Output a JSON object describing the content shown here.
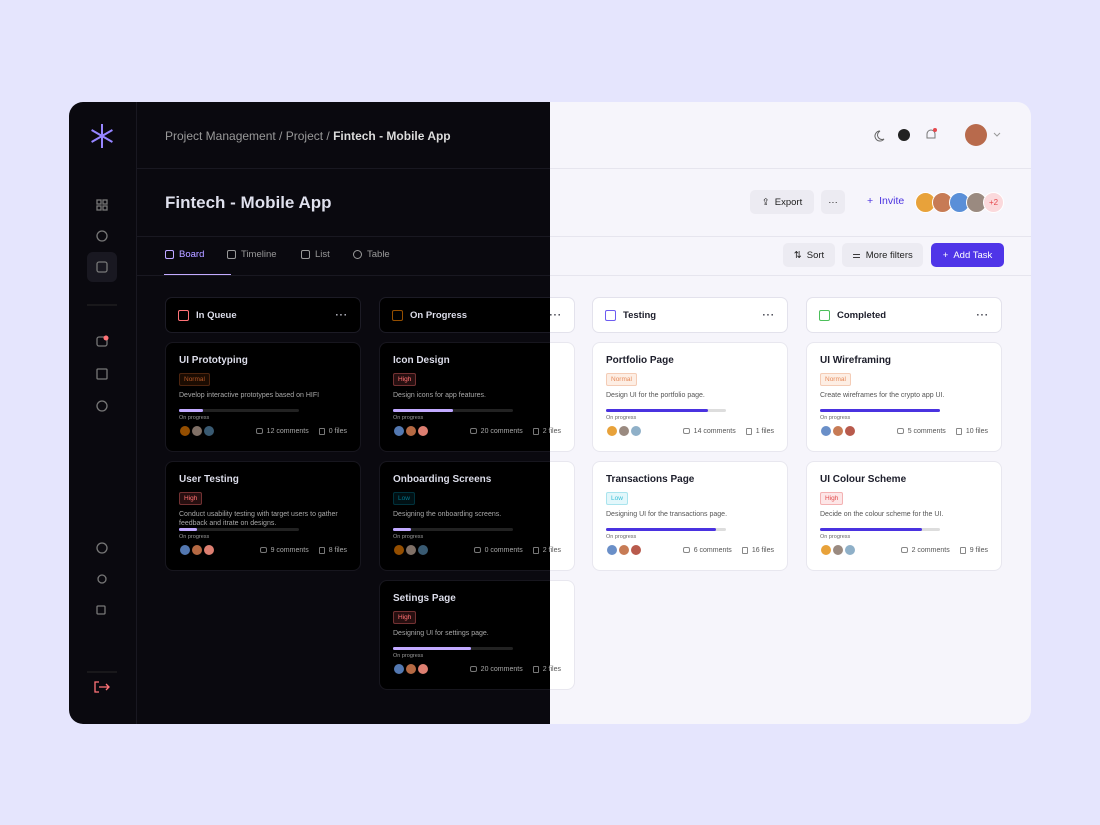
{
  "breadcrumb": {
    "path": "Project Management / Project /",
    "current": "Fintech - Mobile App"
  },
  "title": "Fintech - Mobile App",
  "actions": {
    "export": "Export",
    "invite": "Invite",
    "extra_members": "+2"
  },
  "tabs": [
    "Board",
    "Timeline",
    "List",
    "Table"
  ],
  "toolbar": {
    "sort": "Sort",
    "filters": "More filters",
    "add": "Add Task"
  },
  "columns": [
    {
      "name": "In Queue",
      "color": "#e5484d",
      "cards": [
        {
          "title": "UI Prototyping",
          "priority": "Normal",
          "description": "Develop interactive prototypes based on HIFI",
          "status": "On progress",
          "progress": 20,
          "comments": "12 comments",
          "files": "0 files"
        },
        {
          "title": "User Testing",
          "priority": "High",
          "description": "Conduct usability testing with target users to gather feedback and itrate on designs.",
          "status": "On progress",
          "progress": 15,
          "comments": "9 comments",
          "files": "8 files"
        }
      ]
    },
    {
      "name": "On Progress",
      "color": "#e8a23a",
      "cards": [
        {
          "title": "Icon Design",
          "priority": "High",
          "description": "Design icons for app features.",
          "status": "On progress",
          "progress": 50,
          "comments": "20 comments",
          "files": "2 files"
        },
        {
          "title": "Onboarding Screens",
          "priority": "Low",
          "description": "Designing the onboarding screens.",
          "status": "On progress",
          "progress": 15,
          "comments": "0 comments",
          "files": "2 files"
        },
        {
          "title": "Setings Page",
          "priority": "High",
          "description": "Designing UI for settings page.",
          "status": "On progress",
          "progress": 65,
          "comments": "20 comments",
          "files": "2 files"
        }
      ]
    },
    {
      "name": "Testing",
      "color": "#6d5cf0",
      "cards": [
        {
          "title": "Portfolio Page",
          "priority": "Normal",
          "description": "Design UI for the portfolio page.",
          "status": "On progress",
          "progress": 85,
          "comments": "14 comments",
          "files": "1 files"
        },
        {
          "title": "Transactions Page",
          "priority": "Low",
          "description": "Designing UI for the transactions page.",
          "status": "On progress",
          "progress": 92,
          "comments": "6 comments",
          "files": "16 files"
        }
      ]
    },
    {
      "name": "Completed",
      "color": "#4cbf5a",
      "cards": [
        {
          "title": "UI Wireframing",
          "priority": "Normal",
          "description": "Create wireframes for the crypto app UI.",
          "status": "On progress",
          "progress": 100,
          "comments": "5 comments",
          "files": "10 files"
        },
        {
          "title": "UI Colour Scheme",
          "priority": "High",
          "description": "Decide on the colour scheme for the UI.",
          "status": "On progress",
          "progress": 85,
          "comments": "2 comments",
          "files": "9 files"
        }
      ]
    }
  ]
}
